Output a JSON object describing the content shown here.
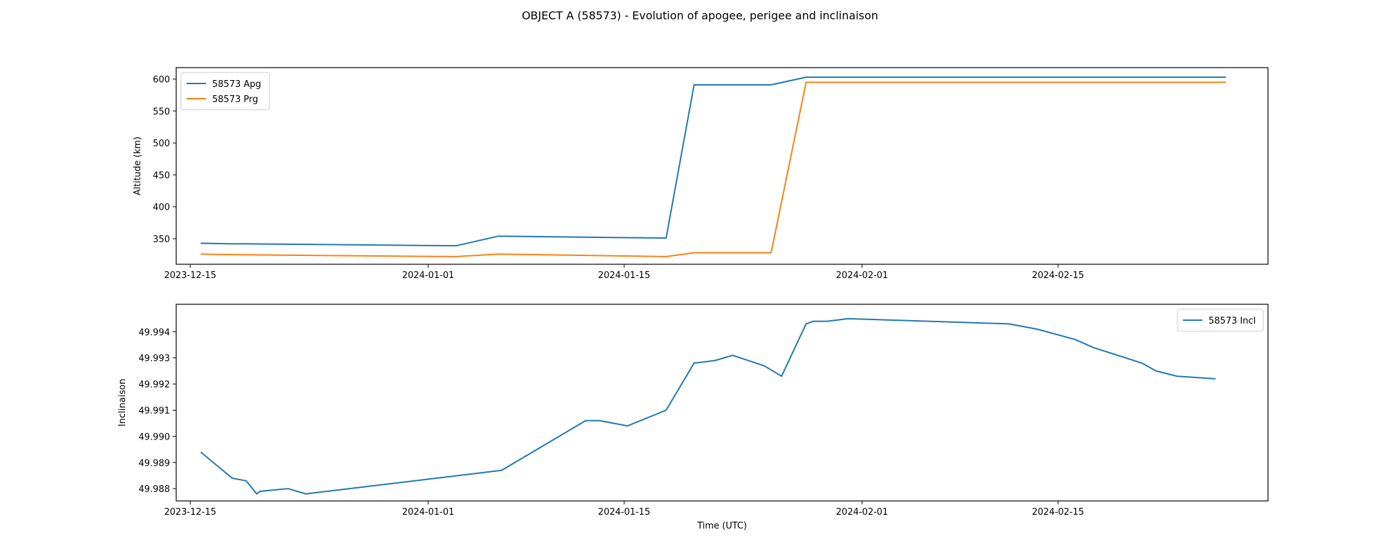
{
  "title": "OBJECT A (58573) - Evolution of apogee, perigee and inclinaison",
  "chart_data": [
    {
      "type": "line",
      "ylabel": "Altitude (km)",
      "xlabel": "",
      "xlim": [
        "2023-12-14",
        "2024-03-01"
      ],
      "ylim": [
        310,
        618
      ],
      "x_ticks": [
        "2023-12-15",
        "2024-01-01",
        "2024-01-15",
        "2024-02-01",
        "2024-02-15"
      ],
      "y_ticks": [
        350,
        400,
        450,
        500,
        550,
        600
      ],
      "legend_position": "upper-left",
      "grid": false,
      "series": [
        {
          "name": "58573 Apg",
          "color": "#1f77b4",
          "x": [
            "2023-12-15T18:00",
            "2023-12-18T00:00",
            "2023-12-19T00:00",
            "2024-01-03T00:00",
            "2024-01-06T00:00",
            "2024-01-18T00:00",
            "2024-01-20T00:00",
            "2024-01-23T00:00",
            "2024-01-25T12:00",
            "2024-01-28T00:00",
            "2024-02-27T00:00"
          ],
          "y": [
            343,
            342,
            342,
            339,
            354,
            351,
            591,
            591,
            591,
            603,
            603
          ]
        },
        {
          "name": "58573 Prg",
          "color": "#ff7f0e",
          "x": [
            "2023-12-15T18:00",
            "2023-12-18T00:00",
            "2024-01-03T00:00",
            "2024-01-06T00:00",
            "2024-01-18T00:00",
            "2024-01-20T00:00",
            "2024-01-25T12:00",
            "2024-01-28T00:00",
            "2024-02-27T00:00"
          ],
          "y": [
            326,
            325,
            322,
            326,
            322,
            328,
            328,
            595,
            595
          ]
        }
      ]
    },
    {
      "type": "line",
      "ylabel": "Inclinaison",
      "xlabel": "Time (UTC)",
      "xlim": [
        "2023-12-14",
        "2024-03-01"
      ],
      "ylim": [
        49.98753,
        49.99505
      ],
      "x_ticks": [
        "2023-12-15",
        "2024-01-01",
        "2024-01-15",
        "2024-02-01",
        "2024-02-15"
      ],
      "y_ticks": [
        "49.988",
        "49.989",
        "49.990",
        "49.991",
        "49.992",
        "49.993",
        "49.994"
      ],
      "legend_position": "upper-right",
      "grid": false,
      "series": [
        {
          "name": "58573 Incl",
          "color": "#1f77b4",
          "x": [
            "2023-12-15T18:00",
            "2023-12-18T00:00",
            "2023-12-19T00:00",
            "2023-12-19T18:00",
            "2023-12-20T00:00",
            "2023-12-22T00:00",
            "2023-12-23T06:00",
            "2024-01-06T06:00",
            "2024-01-12T06:00",
            "2024-01-13T06:00",
            "2024-01-15T06:00",
            "2024-01-18T00:00",
            "2024-01-20T00:00",
            "2024-01-21T12:00",
            "2024-01-22T18:00",
            "2024-01-25T00:00",
            "2024-01-26T06:00",
            "2024-01-28T00:00",
            "2024-01-28T12:00",
            "2024-01-29T12:00",
            "2024-01-31T00:00",
            "2024-02-11T12:00",
            "2024-02-13T12:00",
            "2024-02-16T06:00",
            "2024-02-17T12:00",
            "2024-02-21T00:00",
            "2024-02-22T00:00",
            "2024-02-23T12:00",
            "2024-02-26T06:00"
          ],
          "y": [
            49.9894,
            49.9884,
            49.9883,
            49.9878,
            49.9879,
            49.988,
            49.9878,
            49.9887,
            49.9906,
            49.9906,
            49.9904,
            49.991,
            49.9928,
            49.9929,
            49.9931,
            49.9927,
            49.9923,
            49.9943,
            49.9944,
            49.9944,
            49.9945,
            49.9943,
            49.9941,
            49.9937,
            49.9934,
            49.9928,
            49.9925,
            49.9923,
            49.9922
          ]
        }
      ]
    }
  ]
}
